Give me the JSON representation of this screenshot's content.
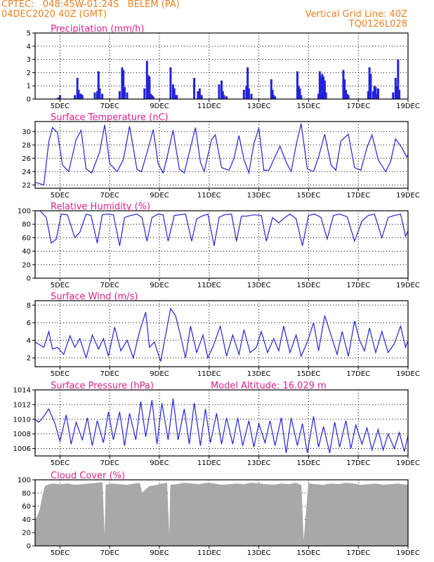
{
  "header": {
    "line1_left": "CPTEC:   048:45W-01:24S   BELEM (PA)",
    "line2_left": "04DEC2020 40Z (GMT)",
    "line1_right": "Vertical Grid Line: 40Z",
    "line2_right": "TQ0126L028"
  },
  "colors": {
    "header": "#f08020",
    "title": "#e0208c",
    "series": "#2222dd",
    "cloud": "#a8a8a8",
    "frame": "#000000",
    "grid": "#000000"
  },
  "x_axis": {
    "range": [
      4.0,
      19.0
    ],
    "ticks": [
      5,
      7,
      9,
      11,
      13,
      15,
      17,
      19
    ],
    "labels": [
      "5DEC",
      "7DEC",
      "9DEC",
      "11DEC",
      "13DEC",
      "15DEC",
      "17DEC",
      "19DEC"
    ]
  },
  "chart_data": [
    {
      "id": "precip",
      "type": "bar",
      "title": "Precipitation (mm/h)",
      "ylim": [
        0,
        5
      ],
      "yticks": [
        0,
        1,
        2,
        3,
        4,
        5
      ],
      "x": [
        4.92,
        5.0,
        5.6,
        5.7,
        5.75,
        5.8,
        5.85,
        5.9,
        6.4,
        6.5,
        6.55,
        6.6,
        6.7,
        7.4,
        7.5,
        7.55,
        7.6,
        7.7,
        8.4,
        8.5,
        8.55,
        8.6,
        8.65,
        8.7,
        8.75,
        9.45,
        9.55,
        9.6,
        9.65,
        9.7,
        10.4,
        10.55,
        10.62,
        10.7,
        11.4,
        11.5,
        11.55,
        11.6,
        11.7,
        12.4,
        12.5,
        12.55,
        12.6,
        12.7,
        13.5,
        13.55,
        13.6,
        13.65,
        14.55,
        14.6,
        14.65,
        14.7,
        15.4,
        15.45,
        15.5,
        15.55,
        15.6,
        15.65,
        15.7,
        16.4,
        16.45,
        16.5,
        16.55,
        16.6,
        17.4,
        17.45,
        17.5,
        17.6,
        17.65,
        17.7,
        17.75,
        17.8,
        18.4,
        18.5,
        18.55,
        18.6,
        18.65
      ],
      "values": [
        0.1,
        0.3,
        0.3,
        1.6,
        0.7,
        0.4,
        0.4,
        0.3,
        0.5,
        0.6,
        2.1,
        0.8,
        0.4,
        0.6,
        2.4,
        2.2,
        0.9,
        0.5,
        0.8,
        2.9,
        1.8,
        1.7,
        0.4,
        0.3,
        0.2,
        2.4,
        1.1,
        0.8,
        0.3,
        0.3,
        1.6,
        0.6,
        0.8,
        0.3,
        1.1,
        1.4,
        0.6,
        0.3,
        0.2,
        0.7,
        1.0,
        2.4,
        0.8,
        0.4,
        1.5,
        0.7,
        0.3,
        0.2,
        2.1,
        1.0,
        0.8,
        0.3,
        0.4,
        2.1,
        1.7,
        1.9,
        1.7,
        1.4,
        0.5,
        2.2,
        1.5,
        0.7,
        0.4,
        0.3,
        0.6,
        2.4,
        1.9,
        0.6,
        1.0,
        0.9,
        0.4,
        0.8,
        0.5,
        1.6,
        1.0,
        3.0,
        0.7
      ]
    },
    {
      "id": "temp",
      "type": "line",
      "title": "Surface Temperature (nC)",
      "ylim": [
        21.5,
        31.5
      ],
      "yticks": [
        22,
        24,
        26,
        28,
        30
      ],
      "x": [
        4.0,
        4.35,
        4.55,
        4.7,
        4.9,
        5.1,
        5.35,
        5.65,
        5.85,
        6.05,
        6.28,
        6.6,
        6.8,
        7.0,
        7.3,
        7.55,
        7.8,
        8.1,
        8.28,
        8.55,
        8.75,
        8.95,
        9.15,
        9.3,
        9.55,
        9.8,
        10.0,
        10.25,
        10.45,
        10.65,
        10.8,
        11.1,
        11.25,
        11.5,
        11.8,
        12.0,
        12.2,
        12.4,
        12.6,
        12.8,
        13.0,
        13.2,
        13.4,
        13.65,
        13.85,
        14.1,
        14.3,
        14.5,
        14.7,
        14.95,
        15.2,
        15.4,
        15.65,
        15.9,
        16.1,
        16.3,
        16.6,
        16.85,
        17.1,
        17.35,
        17.55,
        17.8,
        18.1,
        18.3,
        18.5,
        18.75,
        18.95,
        19.0
      ],
      "values": [
        22.4,
        22.0,
        28.5,
        30.6,
        29.8,
        25.0,
        24.0,
        28.8,
        30.2,
        24.4,
        23.8,
        27.0,
        31.0,
        25.2,
        24.0,
        25.8,
        30.8,
        24.3,
        24.0,
        27.5,
        30.3,
        25.2,
        23.8,
        26.0,
        30.2,
        24.4,
        23.8,
        27.6,
        30.6,
        25.4,
        24.0,
        28.8,
        29.5,
        24.6,
        24.2,
        26.0,
        29.4,
        25.8,
        23.8,
        28.2,
        30.5,
        24.2,
        24.2,
        26.2,
        27.8,
        25.4,
        24.0,
        28.0,
        31.2,
        24.4,
        24.0,
        26.2,
        29.6,
        25.0,
        24.2,
        28.6,
        29.6,
        24.6,
        24.2,
        27.6,
        29.5,
        25.8,
        24.0,
        25.5,
        28.9,
        27.6,
        26.2,
        26.5
      ]
    },
    {
      "id": "rh",
      "type": "line",
      "title": "Relative Humidity (%)",
      "ylim": [
        0,
        100
      ],
      "yticks": [
        0,
        20,
        40,
        60,
        80,
        100
      ],
      "x": [
        4.0,
        4.2,
        4.45,
        4.65,
        4.85,
        5.05,
        5.3,
        5.6,
        5.8,
        6.05,
        6.25,
        6.5,
        6.7,
        6.9,
        7.15,
        7.4,
        7.6,
        7.85,
        8.1,
        8.3,
        8.5,
        8.7,
        8.95,
        9.15,
        9.35,
        9.6,
        9.8,
        10.05,
        10.3,
        10.5,
        10.7,
        10.95,
        11.2,
        11.4,
        11.6,
        11.9,
        12.1,
        12.3,
        12.5,
        12.8,
        13.1,
        13.3,
        13.55,
        13.8,
        14.05,
        14.25,
        14.5,
        14.75,
        15.0,
        15.25,
        15.5,
        15.75,
        16.0,
        16.25,
        16.55,
        16.85,
        17.15,
        17.4,
        17.65,
        17.95,
        18.2,
        18.45,
        18.7,
        18.9,
        19.0
      ],
      "values": [
        100,
        100,
        90,
        52,
        58,
        95,
        94,
        60,
        68,
        95,
        93,
        52,
        94,
        95,
        94,
        48,
        90,
        93,
        95,
        90,
        55,
        90,
        95,
        94,
        55,
        93,
        94,
        95,
        55,
        88,
        92,
        95,
        48,
        90,
        94,
        95,
        55,
        92,
        92,
        94,
        93,
        55,
        90,
        82,
        90,
        95,
        88,
        48,
        93,
        95,
        90,
        58,
        93,
        95,
        91,
        55,
        85,
        93,
        95,
        60,
        90,
        93,
        95,
        62,
        70
      ]
    },
    {
      "id": "wind",
      "type": "line",
      "title": "Surface Wind (m/s)",
      "ylim": [
        1,
        8.5
      ],
      "yticks": [
        2,
        4,
        6,
        8
      ],
      "x": [
        4.0,
        4.35,
        4.55,
        4.7,
        4.9,
        5.15,
        5.4,
        5.6,
        5.8,
        6.05,
        6.3,
        6.55,
        6.75,
        6.95,
        7.2,
        7.45,
        7.7,
        7.95,
        8.2,
        8.45,
        8.6,
        8.8,
        9.05,
        9.25,
        9.45,
        9.65,
        9.85,
        10.05,
        10.25,
        10.5,
        10.75,
        10.95,
        11.2,
        11.45,
        11.7,
        11.95,
        12.2,
        12.4,
        12.65,
        12.9,
        13.1,
        13.35,
        13.6,
        13.8,
        14.0,
        14.25,
        14.5,
        14.7,
        14.95,
        15.2,
        15.4,
        15.65,
        15.9,
        16.15,
        16.35,
        16.6,
        16.85,
        17.05,
        17.25,
        17.45,
        17.7,
        17.95,
        18.2,
        18.45,
        18.7,
        18.9,
        19.0
      ],
      "values": [
        3.8,
        3.2,
        5.0,
        3.0,
        3.2,
        2.4,
        4.5,
        3.2,
        4.2,
        2.0,
        4.6,
        3.0,
        4.2,
        2.2,
        5.5,
        2.8,
        4.0,
        2.0,
        5.0,
        7.2,
        3.2,
        3.8,
        1.6,
        4.6,
        7.6,
        6.8,
        4.5,
        2.0,
        5.6,
        2.6,
        4.6,
        2.0,
        3.6,
        5.6,
        2.2,
        4.6,
        2.4,
        5.2,
        2.6,
        3.2,
        5.0,
        2.6,
        4.2,
        2.8,
        5.6,
        2.6,
        4.6,
        2.2,
        3.8,
        6.0,
        2.8,
        6.8,
        4.6,
        2.4,
        5.0,
        2.2,
        6.2,
        4.0,
        2.8,
        5.4,
        2.6,
        5.0,
        2.6,
        3.6,
        5.6,
        3.2,
        4.0
      ]
    },
    {
      "id": "pres",
      "type": "line",
      "title": "Surface Pressure (hPa)",
      "annotation": "Model Altitude: 16.029 m",
      "ylim": [
        1005,
        1014
      ],
      "yticks": [
        1006,
        1008,
        1010,
        1012,
        1014
      ],
      "x": [
        4.0,
        4.15,
        4.35,
        4.55,
        4.8,
        5.0,
        5.25,
        5.45,
        5.65,
        5.9,
        6.1,
        6.3,
        6.5,
        6.75,
        6.95,
        7.15,
        7.4,
        7.6,
        7.8,
        8.05,
        8.25,
        8.45,
        8.7,
        8.9,
        9.1,
        9.35,
        9.55,
        9.75,
        10.0,
        10.2,
        10.4,
        10.65,
        10.85,
        11.05,
        11.3,
        11.5,
        11.7,
        11.95,
        12.15,
        12.35,
        12.6,
        12.8,
        13.0,
        13.25,
        13.45,
        13.65,
        13.9,
        14.1,
        14.3,
        14.55,
        14.75,
        14.95,
        15.2,
        15.4,
        15.6,
        15.85,
        16.05,
        16.25,
        16.5,
        16.7,
        16.9,
        17.15,
        17.35,
        17.55,
        17.8,
        18.0,
        18.2,
        18.45,
        18.65,
        18.85,
        19.0
      ],
      "values": [
        1010,
        1009.6,
        1010.4,
        1011.4,
        1009.4,
        1007.0,
        1010.6,
        1006.6,
        1009.6,
        1007.2,
        1010.2,
        1006.4,
        1009.8,
        1006.8,
        1011.0,
        1007.2,
        1011.0,
        1006.4,
        1010.8,
        1007.2,
        1012.4,
        1007.6,
        1012.6,
        1006.6,
        1012.2,
        1007.2,
        1012.8,
        1007.2,
        1011.4,
        1006.6,
        1012.2,
        1006.4,
        1011.4,
        1006.8,
        1010.8,
        1006.6,
        1010.2,
        1006.6,
        1010.2,
        1006.4,
        1009.8,
        1006.2,
        1009.4,
        1006.8,
        1009.8,
        1006.4,
        1010.2,
        1005.4,
        1010.2,
        1006.4,
        1009.4,
        1005.4,
        1010.4,
        1006.2,
        1009.0,
        1005.4,
        1009.6,
        1006.2,
        1009.8,
        1006.0,
        1009.2,
        1006.6,
        1008.8,
        1005.8,
        1008.6,
        1005.8,
        1008.0,
        1006.0,
        1008.2,
        1005.6,
        1007.8
      ]
    },
    {
      "id": "cloud",
      "type": "area",
      "title": "Cloud Cover (%)",
      "ylim": [
        0,
        100
      ],
      "yticks": [
        0,
        20,
        40,
        60,
        80,
        100
      ],
      "x": [
        4.0,
        4.1,
        4.2,
        4.3,
        4.4,
        4.5,
        4.7,
        5.0,
        5.3,
        5.6,
        5.9,
        6.2,
        6.5,
        6.7,
        6.8,
        6.85,
        7.1,
        7.4,
        7.7,
        8.0,
        8.2,
        8.3,
        8.6,
        8.9,
        9.1,
        9.3,
        9.4,
        9.45,
        9.7,
        10.0,
        10.3,
        10.6,
        10.9,
        11.2,
        11.5,
        11.8,
        12.1,
        12.4,
        12.7,
        13.0,
        13.3,
        13.6,
        13.9,
        14.2,
        14.5,
        14.6,
        14.7,
        14.8,
        15.0,
        15.3,
        15.6,
        15.9,
        16.2,
        16.5,
        16.8,
        17.1,
        17.4,
        17.7,
        18.0,
        18.3,
        18.6,
        18.9,
        19.0
      ],
      "values": [
        38,
        45,
        55,
        75,
        90,
        92,
        94,
        93,
        94,
        92,
        93,
        94,
        95,
        96,
        1,
        92,
        94,
        93,
        92,
        94,
        95,
        80,
        90,
        92,
        94,
        95,
        1,
        92,
        93,
        95,
        94,
        93,
        95,
        94,
        92,
        93,
        94,
        93,
        95,
        94,
        93,
        92,
        94,
        93,
        95,
        93,
        92,
        1,
        94,
        93,
        92,
        94,
        93,
        95,
        94,
        92,
        93,
        94,
        92,
        93,
        94,
        92,
        93
      ]
    }
  ]
}
